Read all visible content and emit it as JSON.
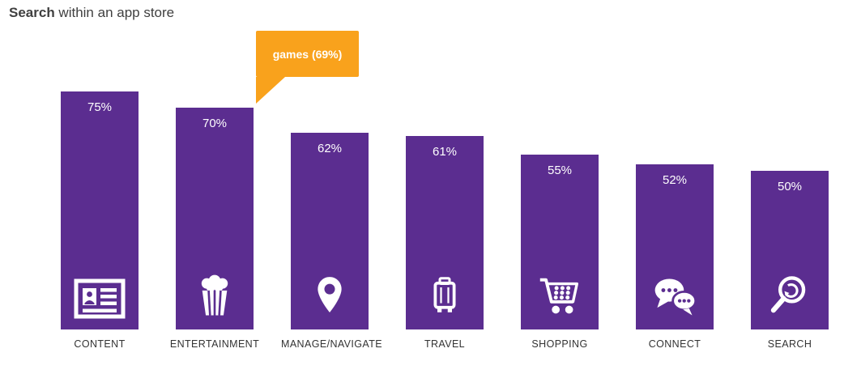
{
  "title": {
    "prefix": "Search",
    "suffix": " within an app store"
  },
  "colors": {
    "bar": "#5b2d90",
    "callout_orange": "#f9a21c",
    "title_text": "#3f3f3f",
    "label_text": "#333333",
    "icon_white": "#ffffff"
  },
  "chart_data": {
    "type": "bar",
    "title": "Search within an app store",
    "categories": [
      "CONTENT",
      "ENTERTAINMENT",
      "MANAGE/NAVIGATE",
      "TRAVEL",
      "SHOPPING",
      "CONNECT",
      "SEARCH"
    ],
    "values": [
      75,
      70,
      62,
      61,
      55,
      52,
      50
    ],
    "value_labels": [
      "75%",
      "70%",
      "62%",
      "61%",
      "55%",
      "52%",
      "50%"
    ],
    "unit": "%",
    "ylim": [
      0,
      80
    ],
    "grid": false,
    "legend": false,
    "bar_color": "#5b2d90",
    "annotation": {
      "text": "games (69%)",
      "target_category": "ENTERTAINMENT",
      "color": "#f9a21c"
    },
    "icons": [
      "newspaper-icon",
      "popcorn-icon",
      "location-pin-icon",
      "suitcase-icon",
      "shopping-cart-icon",
      "chat-bubbles-icon",
      "magnifier-icon"
    ]
  }
}
